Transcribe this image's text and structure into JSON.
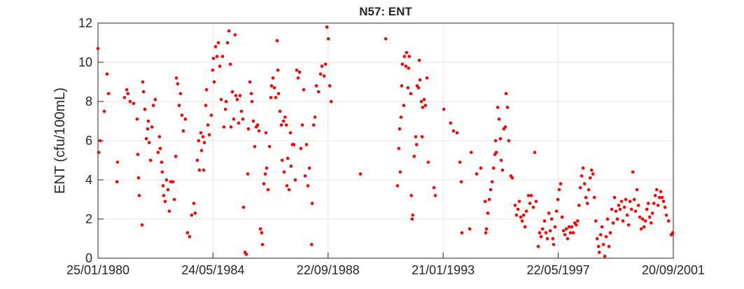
{
  "chart_data": {
    "type": "scatter",
    "title": "N57: ENT",
    "ylabel": "ENT (cfu/100mL)",
    "color": "#ff0000",
    "grid": true,
    "xlim": [
      "1980-01-25",
      "2001-09-20"
    ],
    "xticks": [
      {
        "value": "1980-01-25",
        "label": "25/01/1980"
      },
      {
        "value": "1984-05-24",
        "label": "24/05/1984"
      },
      {
        "value": "1988-09-22",
        "label": "22/09/1988"
      },
      {
        "value": "1993-01-21",
        "label": "21/01/1993"
      },
      {
        "value": "1997-05-22",
        "label": "22/05/1997"
      },
      {
        "value": "2001-09-20",
        "label": "20/09/2001"
      }
    ],
    "ylim": [
      0,
      12
    ],
    "yticks": [
      0,
      2,
      4,
      6,
      8,
      10,
      12
    ],
    "x": [
      "1980-01-25",
      "1980-02-04",
      "1980-02-23",
      "1980-04-20",
      "1980-05-28",
      "1980-06-17",
      "1980-10-11",
      "1980-10-20",
      "1981-01-24",
      "1981-02-23",
      "1981-03-11",
      "1981-04-10",
      "1981-05-28",
      "1981-07-15",
      "1981-07-25",
      "1981-08-04",
      "1981-08-13",
      "1981-09-21",
      "1981-10-01",
      "1981-10-11",
      "1981-10-30",
      "1981-11-19",
      "1981-12-08",
      "1981-12-17",
      "1981-12-27",
      "1982-01-16",
      "1982-02-05",
      "1982-02-24",
      "1982-03-23",
      "1982-04-30",
      "1982-05-19",
      "1982-05-29",
      "1982-06-17",
      "1982-06-26",
      "1982-07-07",
      "1982-07-17",
      "1982-08-05",
      "1982-08-24",
      "1982-09-13",
      "1982-10-02",
      "1982-10-21",
      "1982-11-19",
      "1982-12-09",
      "1982-12-28",
      "1983-01-07",
      "1983-01-25",
      "1983-02-14",
      "1983-03-04",
      "1983-03-23",
      "1983-04-12",
      "1983-05-10",
      "1983-06-08",
      "1983-07-07",
      "1983-08-05",
      "1983-09-02",
      "1983-09-21",
      "1983-10-21",
      "1983-11-09",
      "1983-11-19",
      "1983-12-09",
      "1983-12-18",
      "1984-01-08",
      "1984-01-17",
      "1984-01-26",
      "1984-02-15",
      "1984-02-24",
      "1984-03-15",
      "1984-04-03",
      "1984-05-01",
      "1984-05-20",
      "1984-05-30",
      "1984-06-09",
      "1984-06-28",
      "1984-07-18",
      "1984-08-06",
      "1984-08-26",
      "1984-09-14",
      "1984-10-03",
      "1984-10-22",
      "1984-11-11",
      "1984-11-20",
      "1984-12-10",
      "1984-12-29",
      "1985-01-17",
      "1985-01-26",
      "1985-02-15",
      "1985-03-06",
      "1985-03-24",
      "1985-04-03",
      "1985-04-22",
      "1985-05-11",
      "1985-05-30",
      "1985-06-18",
      "1985-07-08",
      "1985-07-17",
      "1985-08-06",
      "1985-08-26",
      "1985-09-14",
      "1985-09-23",
      "1985-10-13",
      "1985-11-01",
      "1985-11-11",
      "1985-11-30",
      "1985-12-19",
      "1986-01-09",
      "1986-01-27",
      "1986-02-16",
      "1986-03-07",
      "1986-03-25",
      "1986-04-04",
      "1986-04-23",
      "1986-05-12",
      "1986-05-22",
      "1986-05-31",
      "1986-06-20",
      "1986-07-09",
      "1986-07-28",
      "1986-08-07",
      "1986-08-26",
      "1986-09-15",
      "1986-10-04",
      "1986-10-23",
      "1986-11-02",
      "1986-11-12",
      "1986-12-01",
      "1986-12-20",
      "1986-12-30",
      "1987-01-18",
      "1987-01-27",
      "1987-02-08",
      "1987-02-27",
      "1987-03-07",
      "1987-03-17",
      "1987-04-04",
      "1987-04-23",
      "1987-05-02",
      "1987-05-21",
      "1987-06-10",
      "1987-06-29",
      "1987-07-19",
      "1987-08-07",
      "1987-08-27",
      "1987-09-15",
      "1987-10-04",
      "1987-10-23",
      "1987-11-12",
      "1987-12-01",
      "1987-12-20",
      "1988-01-09",
      "1988-02-08",
      "1988-02-17",
      "1988-03-08",
      "1988-03-26",
      "1988-04-15",
      "1988-05-13",
      "1988-06-11",
      "1988-06-30",
      "1988-07-29",
      "1988-08-17",
      "1988-09-06",
      "1988-09-25",
      "1988-10-14",
      "1988-11-03",
      "1989-12-11",
      "1990-11-23",
      "1991-05-04",
      "1991-05-23",
      "1991-06-02",
      "1991-06-11",
      "1991-06-21",
      "1991-07-01",
      "1991-07-10",
      "1991-07-29",
      "1991-08-08",
      "1991-08-27",
      "1991-09-05",
      "1991-09-24",
      "1991-10-04",
      "1991-10-13",
      "1991-11-02",
      "1991-11-11",
      "1991-11-21",
      "1991-12-01",
      "1991-12-20",
      "1992-01-11",
      "1992-01-21",
      "1992-01-30",
      "1992-02-18",
      "1992-02-28",
      "1992-03-08",
      "1992-03-27",
      "1992-04-06",
      "1992-04-15",
      "1992-05-04",
      "1992-05-23",
      "1992-06-12",
      "1992-07-01",
      "1992-09-17",
      "1992-10-06",
      "1993-01-30",
      "1993-05-04",
      "1993-06-12",
      "1993-07-30",
      "1993-09-08",
      "1993-09-27",
      "1993-10-06",
      "1994-01-21",
      "1994-02-10",
      "1994-04-26",
      "1994-06-23",
      "1994-08-20",
      "1994-08-30",
      "1994-09-08",
      "1994-09-27",
      "1994-10-17",
      "1994-11-05",
      "1994-11-24",
      "1994-12-14",
      "1995-01-03",
      "1995-01-12",
      "1995-01-21",
      "1995-02-10",
      "1995-03-01",
      "1995-03-19",
      "1995-03-29",
      "1995-04-17",
      "1995-05-06",
      "1995-05-25",
      "1995-06-04",
      "1995-06-23",
      "1995-07-12",
      "1995-08-10",
      "1995-08-30",
      "1995-10-08",
      "1995-10-27",
      "1995-11-16",
      "1995-12-05",
      "1995-12-24",
      "1996-01-13",
      "1996-02-02",
      "1996-02-21",
      "1996-03-10",
      "1996-04-08",
      "1996-04-27",
      "1996-05-16",
      "1996-06-14",
      "1996-07-03",
      "1996-07-22",
      "1996-08-20",
      "1996-09-08",
      "1996-09-27",
      "1996-10-17",
      "1996-11-15",
      "1996-12-04",
      "1996-12-24",
      "1997-01-13",
      "1997-02-02",
      "1997-02-21",
      "1997-03-10",
      "1997-03-19",
      "1997-04-08",
      "1997-04-27",
      "1997-05-16",
      "1997-06-04",
      "1997-06-24",
      "1997-07-13",
      "1997-08-02",
      "1997-08-21",
      "1997-09-08",
      "1997-09-27",
      "1997-10-17",
      "1997-11-05",
      "1997-11-24",
      "1997-12-14",
      "1998-01-04",
      "1998-01-23",
      "1998-02-12",
      "1998-03-02",
      "1998-03-21",
      "1998-04-09",
      "1998-04-29",
      "1998-05-18",
      "1998-06-06",
      "1998-06-26",
      "1998-07-15",
      "1998-08-04",
      "1998-08-23",
      "1998-09-11",
      "1998-09-30",
      "1998-10-20",
      "1998-11-08",
      "1998-11-27",
      "1998-12-07",
      "1998-12-26",
      "1999-01-14",
      "1999-02-03",
      "1999-02-21",
      "1999-03-12",
      "1999-03-31",
      "1999-04-19",
      "1999-05-08",
      "1999-05-28",
      "1999-06-16",
      "1999-07-05",
      "1999-07-24",
      "1999-08-13",
      "1999-09-01",
      "1999-09-20",
      "1999-10-10",
      "1999-10-29",
      "1999-11-18",
      "1999-12-07",
      "1999-12-26",
      "2000-01-15",
      "2000-02-04",
      "2000-02-23",
      "2000-03-13",
      "2000-04-01",
      "2000-04-20",
      "2000-05-09",
      "2000-05-29",
      "2000-06-17",
      "2000-07-06",
      "2000-07-25",
      "2000-08-14",
      "2000-09-02",
      "2000-09-21",
      "2000-10-11",
      "2000-10-30",
      "2000-11-19",
      "2000-12-08",
      "2000-12-27",
      "2001-01-15",
      "2001-02-04",
      "2001-02-23",
      "2001-03-13",
      "2001-04-01",
      "2001-04-20",
      "2001-05-09",
      "2001-05-29",
      "2001-06-17",
      "2001-07-16",
      "2001-08-23",
      "2001-09-12"
    ],
    "values": [
      10.7,
      5.4,
      6.0,
      7.5,
      9.4,
      8.4,
      3.9,
      4.9,
      8.2,
      8.6,
      8.4,
      8.0,
      7.9,
      7.1,
      5.3,
      4.1,
      3.2,
      1.7,
      9.0,
      8.5,
      7.6,
      6.1,
      6.6,
      7.0,
      5.9,
      5.0,
      6.7,
      7.8,
      8.1,
      5.4,
      6.2,
      5.6,
      4.9,
      4.4,
      3.7,
      3.2,
      2.9,
      4.0,
      3.5,
      2.4,
      3.9,
      3.9,
      3.0,
      5.2,
      9.2,
      8.9,
      7.8,
      8.4,
      7.3,
      6.5,
      7.1,
      1.3,
      1.1,
      2.2,
      2.8,
      2.3,
      5.0,
      6.0,
      4.5,
      6.4,
      5.5,
      6.2,
      4.5,
      5.9,
      7.8,
      8.6,
      6.8,
      6.3,
      7.3,
      9.6,
      10.2,
      9.0,
      10.8,
      10.3,
      11.0,
      9.8,
      8.1,
      10.3,
      6.7,
      7.6,
      8.0,
      11.0,
      11.6,
      9.9,
      6.7,
      8.5,
      7.1,
      11.4,
      8.3,
      8.1,
      6.9,
      8.3,
      7.5,
      7.1,
      2.6,
      0.3,
      0.2,
      4.3,
      6.6,
      9.0,
      8.4,
      8.0,
      7.0,
      5.7,
      6.7,
      6.8,
      6.5,
      1.5,
      1.3,
      0.7,
      3.8,
      4.3,
      6.4,
      4.6,
      3.5,
      5.7,
      8.2,
      8.8,
      9.2,
      8.7,
      8.2,
      11.1,
      9.6,
      8.4,
      7.5,
      6.8,
      5.0,
      7.0,
      4.4,
      7.2,
      6.8,
      3.7,
      5.1,
      3.5,
      6.4,
      4.7,
      5.8,
      5.8,
      4.0,
      9.6,
      9.2,
      9.5,
      5.6,
      6.8,
      8.6,
      4.2,
      5.8,
      3.7,
      4.6,
      0.7,
      2.8,
      6.8,
      7.2,
      8.8,
      8.5,
      9.4,
      9.8,
      9.3,
      9.9,
      11.8,
      11.2,
      8.8,
      8.0,
      4.3,
      11.2,
      3.7,
      5.6,
      6.6,
      4.4,
      7.2,
      8.8,
      9.9,
      7.8,
      10.3,
      9.8,
      10.5,
      8.7,
      9.7,
      10.3,
      8.4,
      3.2,
      2.0,
      2.2,
      5.2,
      6.2,
      5.8,
      8.8,
      8.7,
      10.1,
      9.1,
      8.0,
      6.2,
      7.7,
      8.1,
      7.8,
      9.2,
      4.9,
      3.6,
      3.2,
      7.6,
      6.9,
      6.5,
      6.4,
      4.9,
      3.9,
      1.3,
      1.5,
      5.4,
      4.3,
      4.6,
      2.9,
      1.3,
      1.5,
      2.3,
      3.0,
      3.5,
      3.9,
      4.6,
      5.3,
      6.0,
      5.4,
      7.7,
      7.1,
      6.1,
      5.0,
      4.5,
      6.6,
      6.7,
      8.4,
      7.7,
      6.0,
      4.2,
      4.1,
      2.7,
      2.2,
      2.5,
      2.9,
      2.1,
      1.9,
      2.2,
      1.6,
      2.4,
      3.2,
      2.8,
      3.2,
      2.6,
      5.4,
      2.9,
      0.6,
      1.3,
      1.1,
      1.5,
      1.9,
      1.3,
      1.0,
      2.3,
      1.4,
      2.0,
      1.0,
      0.7,
      1.6,
      2.4,
      3.0,
      3.5,
      3.8,
      2.1,
      1.4,
      1.2,
      1.5,
      1.0,
      1.6,
      1.3,
      1.6,
      1.3,
      1.8,
      1.7,
      1.9,
      2.7,
      3.6,
      4.2,
      4.6,
      3.8,
      3.1,
      2.8,
      3.5,
      4.1,
      4.5,
      4.3,
      3.1,
      1.9,
      1.0,
      0.6,
      0.3,
      1.2,
      1.6,
      0.7,
      0.1,
      1.1,
      2.0,
      0.6,
      1.3,
      2.5,
      1.8,
      3.1,
      2.4,
      2.0,
      2.7,
      2.5,
      2.9,
      1.9,
      2.6,
      3.0,
      2.2,
      1.7,
      2.9,
      2.5,
      4.4,
      3.0,
      2.4,
      3.5,
      2.7,
      2.1,
      1.5,
      2.0,
      1.6,
      1.9,
      2.5,
      2.8,
      2.1,
      1.8,
      2.3,
      2.8,
      3.2,
      3.5,
      2.7,
      3.1,
      3.4,
      3.1,
      2.9,
      2.6,
      2.2,
      1.9,
      1.2,
      1.3
    ]
  }
}
